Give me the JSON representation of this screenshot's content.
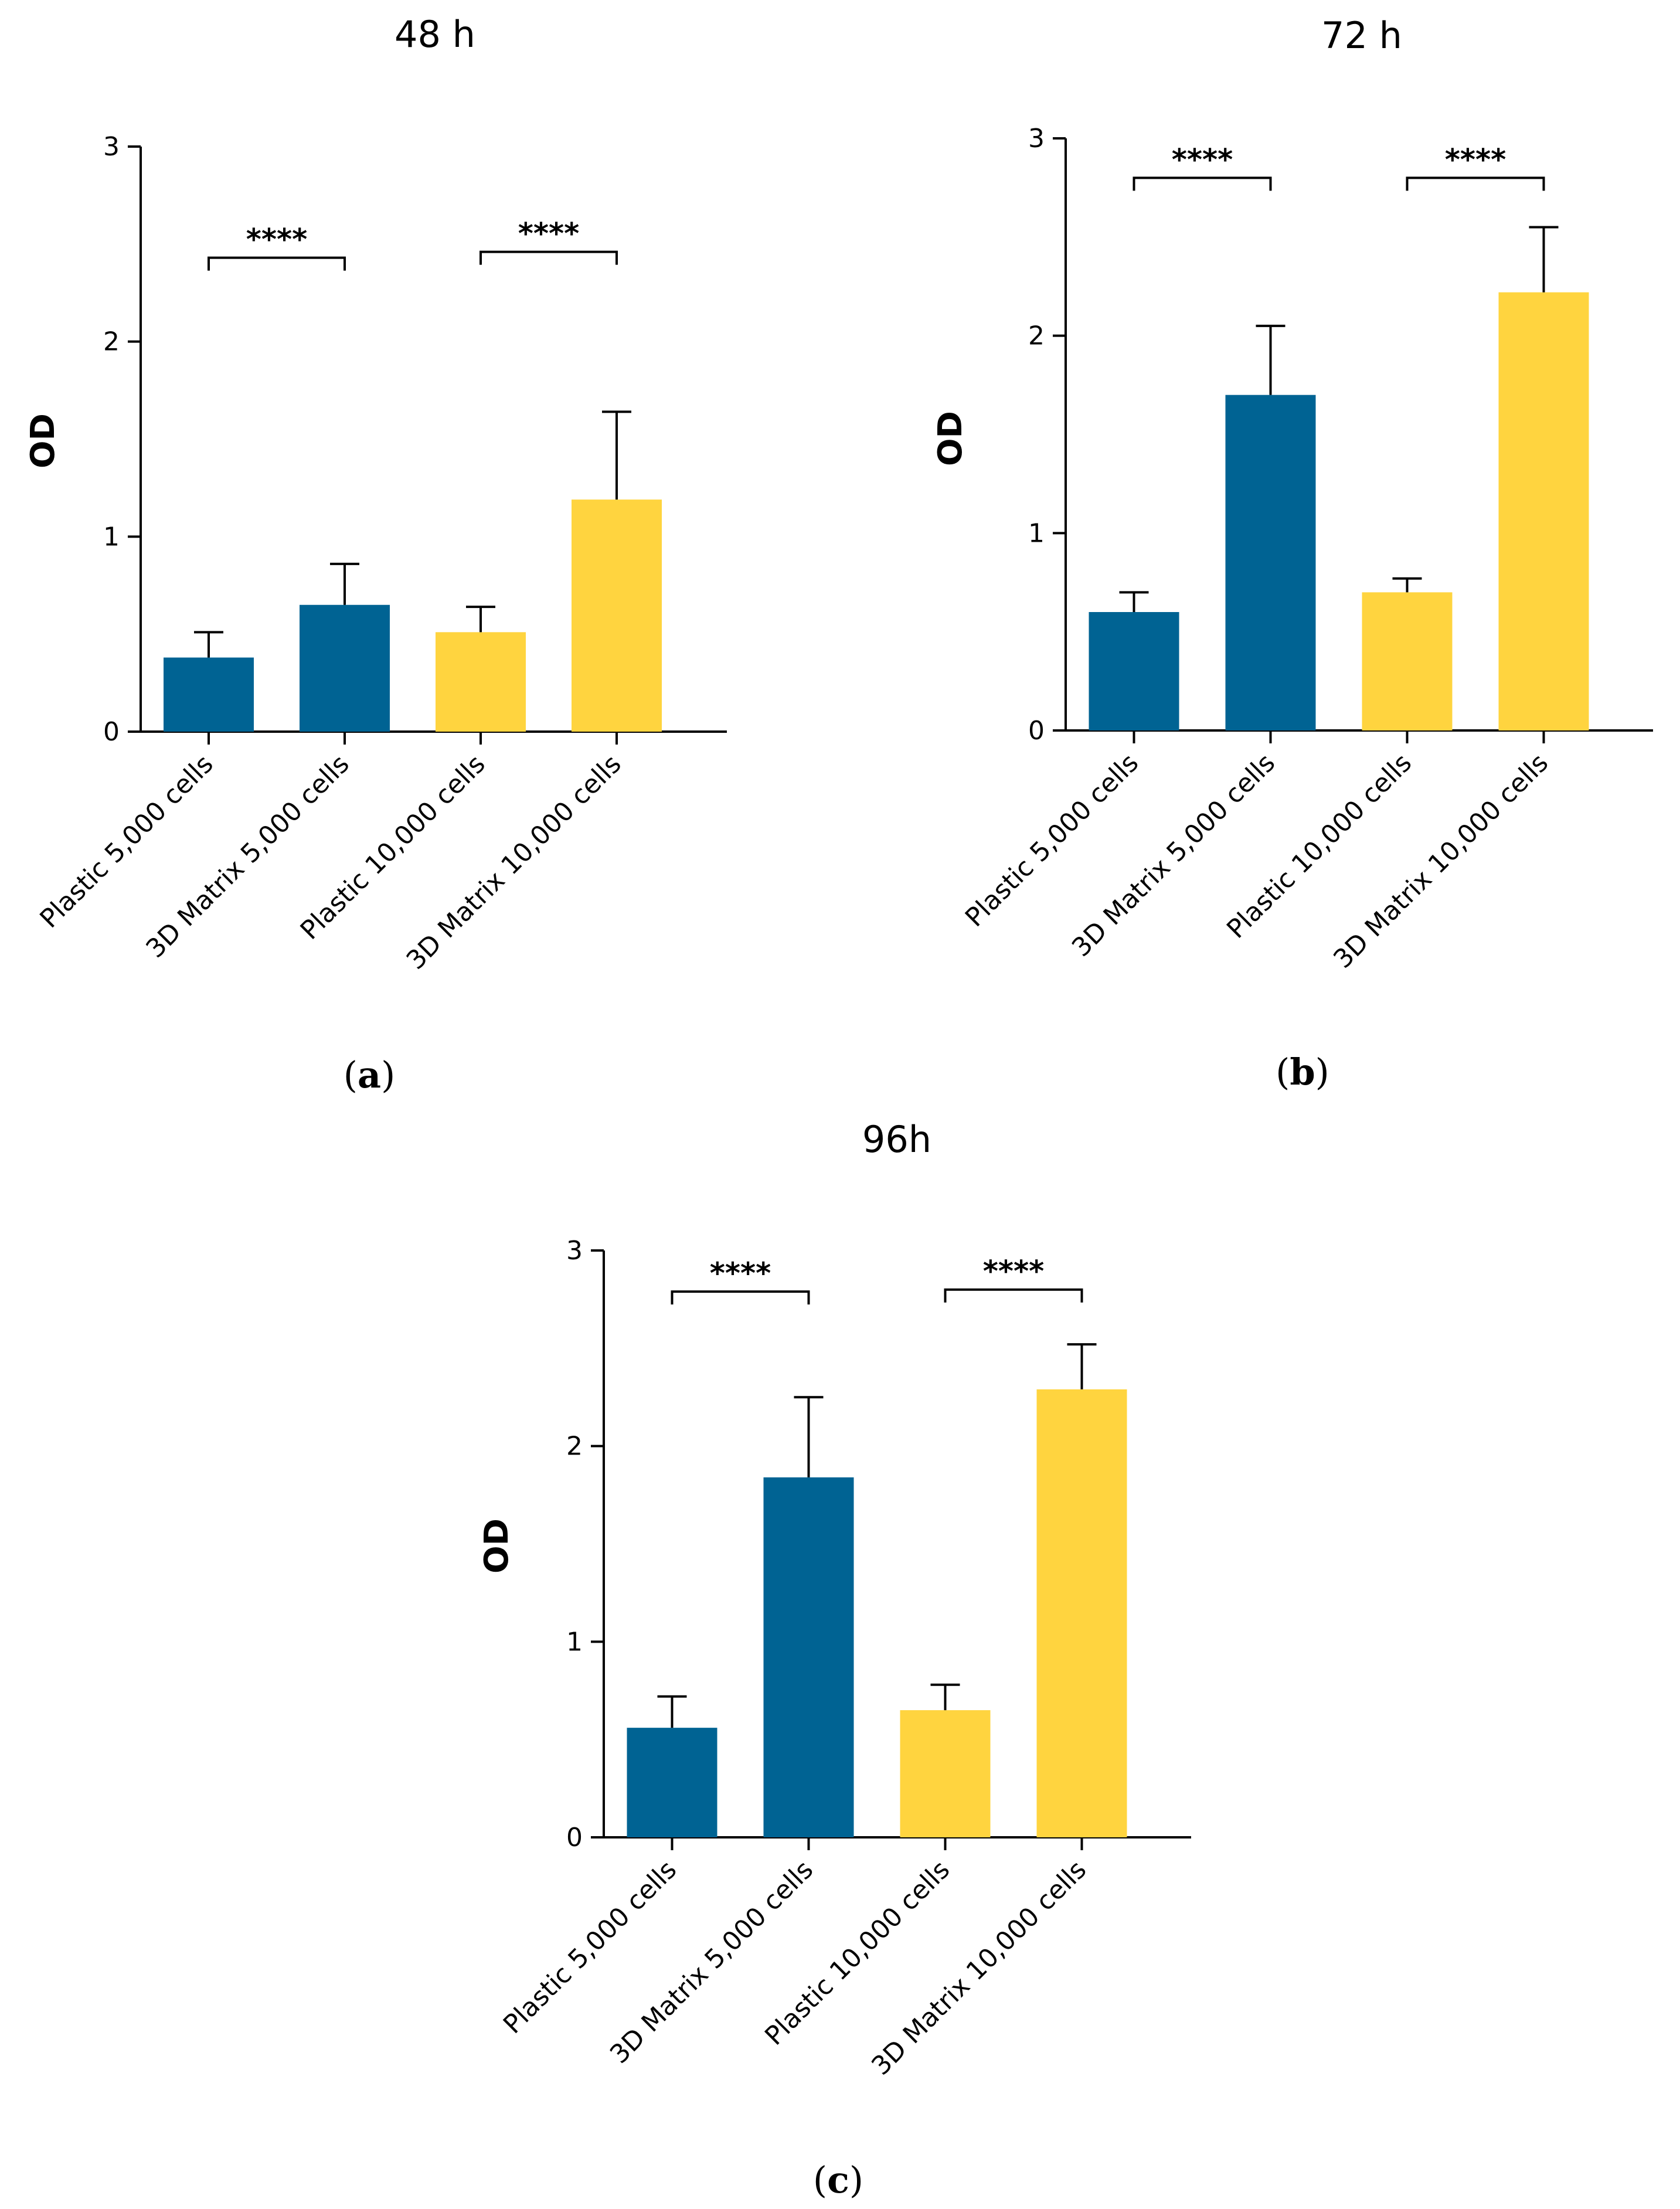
{
  "colors": {
    "plastic": "#006393",
    "matrix": "#ffd43f",
    "axis": "#000000"
  },
  "chart_data": [
    {
      "type": "bar",
      "panel": "(a)",
      "title": "48 h",
      "ylabel": "OD",
      "xlabel": "",
      "ylim": [
        0,
        3
      ],
      "yticks": [
        "0",
        "1",
        "2",
        "3"
      ],
      "categories": [
        "Plastic 5,000 cells",
        "3D Matrix 5,000 cells",
        "Plastic 10,000 cells",
        "3D Matrix 10,000 cells"
      ],
      "values": [
        0.38,
        0.65,
        0.51,
        1.19
      ],
      "errors": [
        0.13,
        0.21,
        0.13,
        0.45
      ],
      "bar_colors": [
        "plastic",
        "plastic",
        "matrix",
        "matrix"
      ],
      "significance": [
        {
          "from": 0,
          "to": 1,
          "y": 2.43,
          "label": "****"
        },
        {
          "from": 2,
          "to": 3,
          "y": 2.46,
          "label": "****"
        }
      ]
    },
    {
      "type": "bar",
      "panel": "(b)",
      "title": "72 h",
      "ylabel": "OD",
      "xlabel": "",
      "ylim": [
        0,
        3
      ],
      "yticks": [
        "0",
        "1",
        "2",
        "3"
      ],
      "categories": [
        "Plastic 5,000 cells",
        "3D Matrix 5,000 cells",
        "Plastic 10,000 cells",
        "3D Matrix 10,000 cells"
      ],
      "values": [
        0.6,
        1.7,
        0.7,
        2.22
      ],
      "errors": [
        0.1,
        0.35,
        0.07,
        0.33
      ],
      "bar_colors": [
        "plastic",
        "plastic",
        "matrix",
        "matrix"
      ],
      "significance": [
        {
          "from": 0,
          "to": 1,
          "y": 2.8,
          "label": "****"
        },
        {
          "from": 2,
          "to": 3,
          "y": 2.8,
          "label": "****"
        }
      ]
    },
    {
      "type": "bar",
      "panel": "(c)",
      "title": "96h",
      "ylabel": "OD",
      "xlabel": "",
      "ylim": [
        0,
        3
      ],
      "yticks": [
        "0",
        "1",
        "2",
        "3"
      ],
      "categories": [
        "Plastic 5,000 cells",
        "3D Matrix 5,000 cells",
        "Plastic 10,000 cells",
        "3D Matrix 10,000 cells"
      ],
      "values": [
        0.56,
        1.84,
        0.65,
        2.29
      ],
      "errors": [
        0.16,
        0.41,
        0.13,
        0.23
      ],
      "bar_colors": [
        "plastic",
        "plastic",
        "matrix",
        "matrix"
      ],
      "significance": [
        {
          "from": 0,
          "to": 1,
          "y": 2.79,
          "label": "****"
        },
        {
          "from": 2,
          "to": 3,
          "y": 2.8,
          "label": "****"
        }
      ]
    }
  ]
}
